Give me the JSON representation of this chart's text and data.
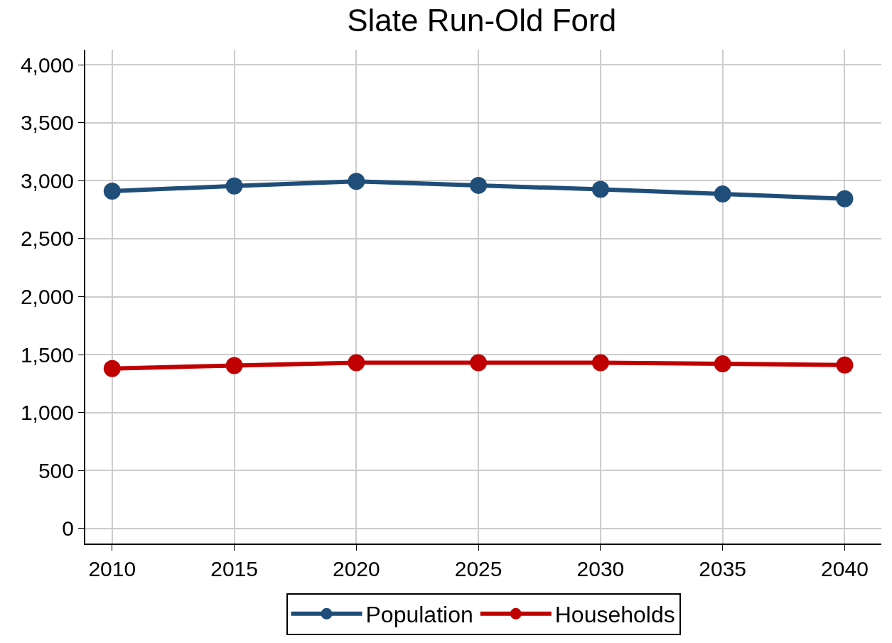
{
  "chart_data": {
    "type": "line",
    "title": "Slate Run-Old Ford",
    "x": [
      2010,
      2015,
      2020,
      2025,
      2030,
      2035,
      2040
    ],
    "series": [
      {
        "name": "Population",
        "color": "#1f4e79",
        "values": [
          2910,
          2955,
          2995,
          2960,
          2925,
          2885,
          2845
        ]
      },
      {
        "name": "Households",
        "color": "#c00000",
        "values": [
          1380,
          1405,
          1430,
          1430,
          1430,
          1420,
          1410
        ]
      }
    ],
    "xlim": [
      2008.9,
      2041.5
    ],
    "xticks": [
      2010,
      2015,
      2020,
      2025,
      2030,
      2035,
      2040
    ],
    "ylim": [
      -130,
      4130
    ],
    "yticks": [
      {
        "value": 0,
        "label": "0"
      },
      {
        "value": 500,
        "label": "500"
      },
      {
        "value": 1000,
        "label": "1,000"
      },
      {
        "value": 1500,
        "label": "1,500"
      },
      {
        "value": 2000,
        "label": "2,000"
      },
      {
        "value": 2500,
        "label": "2,500"
      },
      {
        "value": 3000,
        "label": "3,000"
      },
      {
        "value": 3500,
        "label": "3,500"
      },
      {
        "value": 4000,
        "label": "4,000"
      }
    ],
    "grid": true,
    "legend": "bottom",
    "marker": "circle",
    "line_style": "solid"
  }
}
